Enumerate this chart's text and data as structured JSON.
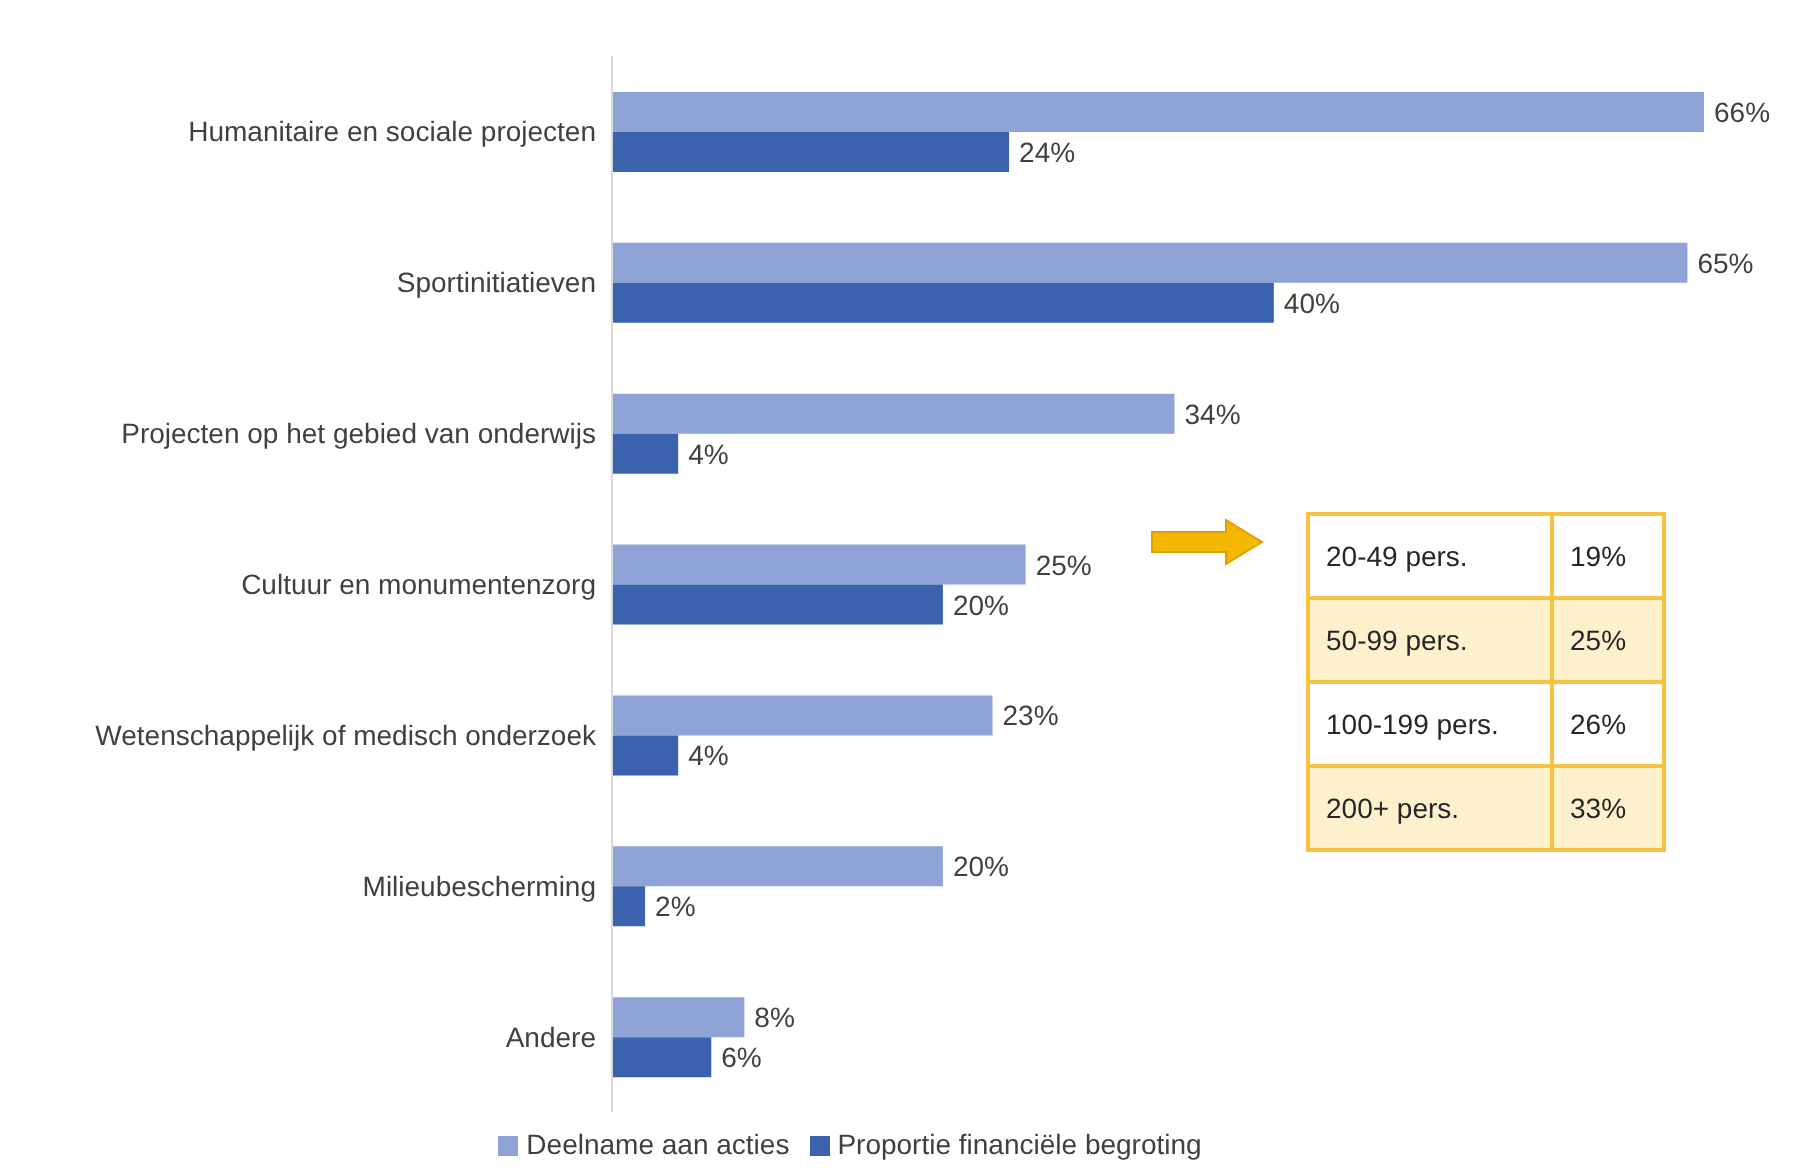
{
  "chart_data": {
    "type": "bar",
    "orientation": "horizontal",
    "categories": [
      "Humanitaire en sociale projecten",
      "Sportinitiatieven",
      "Projecten op het gebied van onderwijs",
      "Cultuur en monumentenzorg",
      "Wetenschappelijk of medisch onderzoek",
      "Milieubescherming",
      "Andere"
    ],
    "series": [
      {
        "name": "Deelname aan acties",
        "color": "#8fa3d6",
        "values": [
          66,
          65,
          34,
          25,
          23,
          20,
          8
        ],
        "value_labels": [
          "66%",
          "65%",
          "34%",
          "25%",
          "23%",
          "20%",
          "8%"
        ]
      },
      {
        "name": "Proportie financiële begroting",
        "color": "#3b62ad",
        "values": [
          24,
          40,
          4,
          20,
          4,
          2,
          6
        ],
        "value_labels": [
          "24%",
          "40%",
          "4%",
          "20%",
          "4%",
          "2%",
          "6%"
        ]
      }
    ],
    "legend": "bottom",
    "grid": false,
    "annotations": [
      "20-49 pers.",
      "19%",
      "50-99 pers.",
      "25%",
      "100-199 pers.",
      "26%",
      "200+ pers.",
      "33%"
    ]
  }
}
